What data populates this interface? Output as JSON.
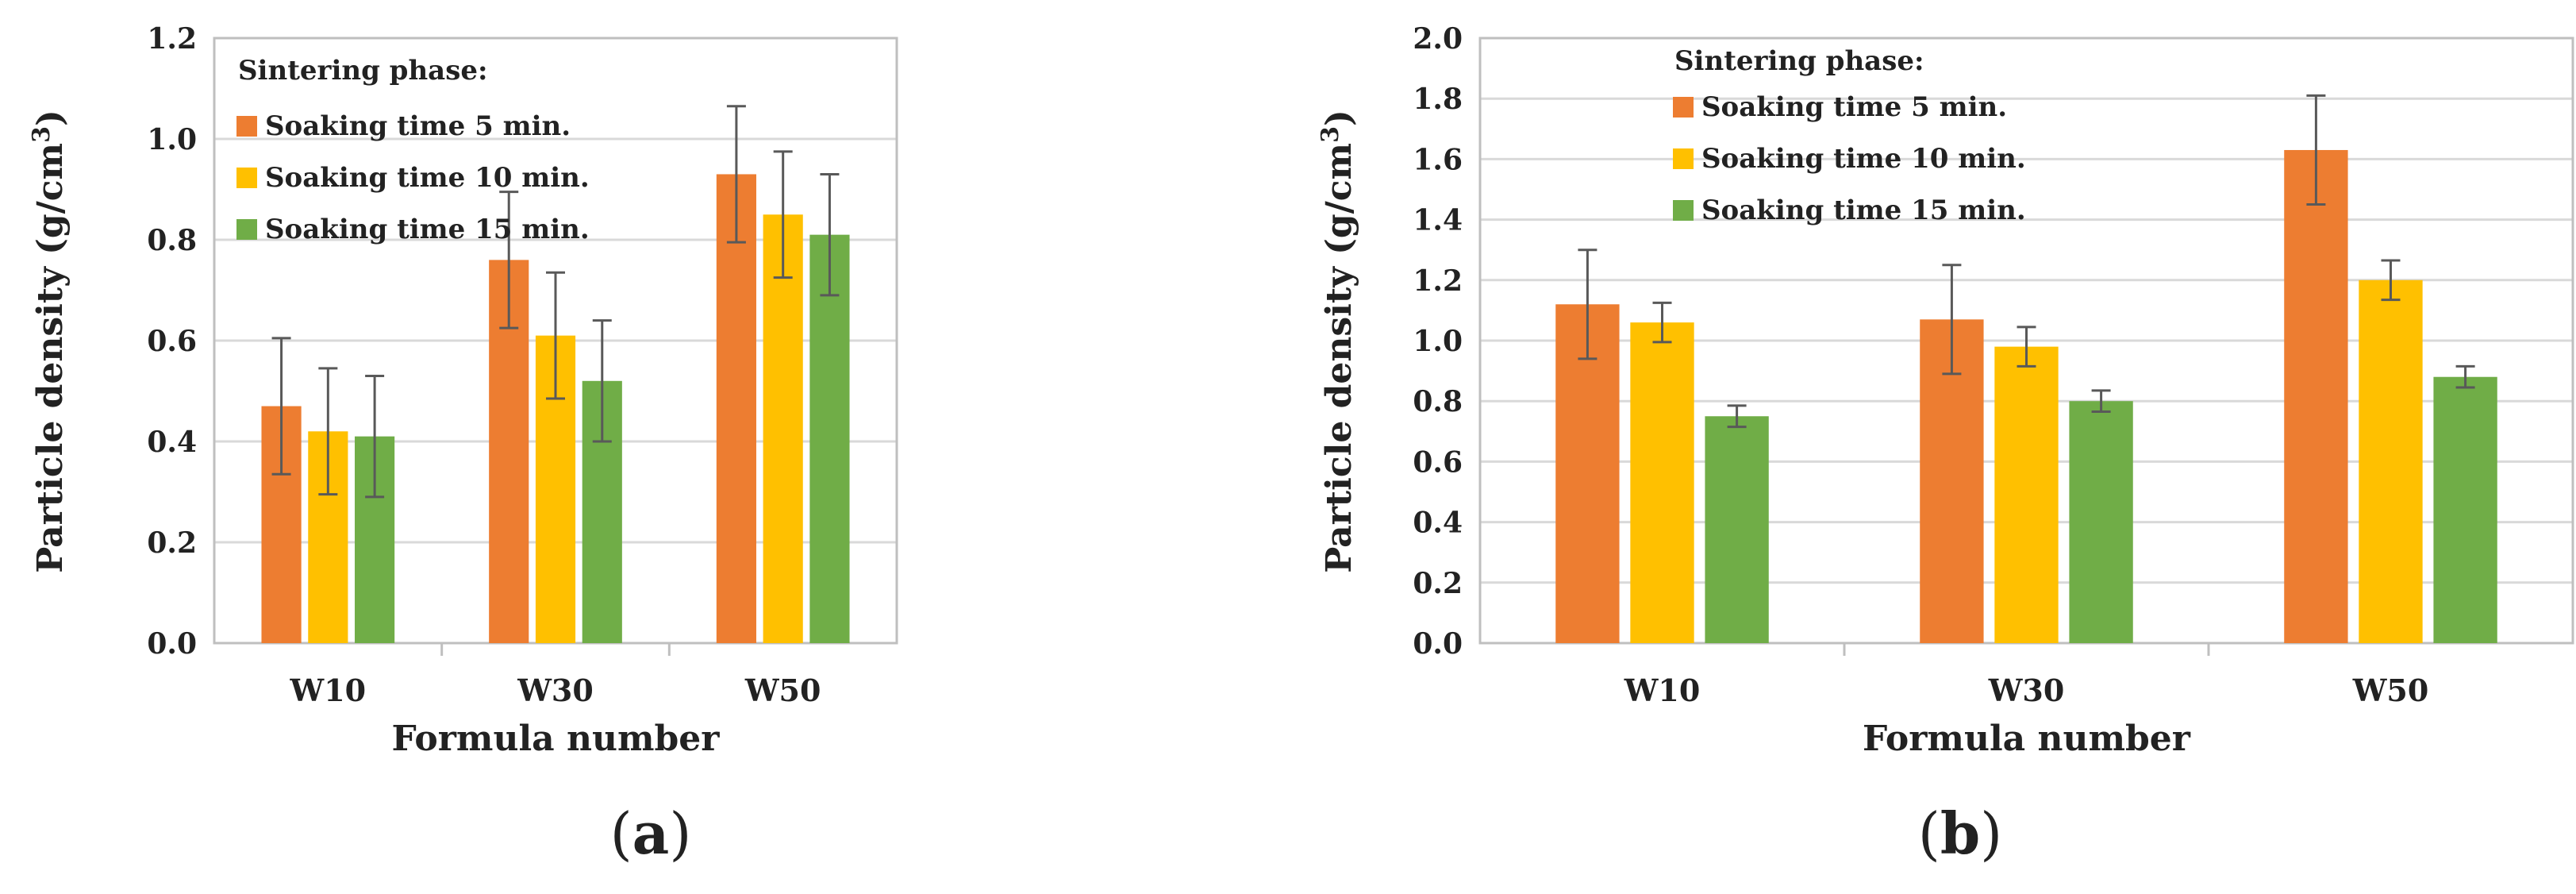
{
  "chart_data": [
    {
      "id": "a",
      "type": "bar",
      "panel_label": "a",
      "categories": [
        "W10",
        "W30",
        "W50"
      ],
      "series": [
        {
          "name": "Soaking time 5 min.",
          "color": "#ED7D31",
          "values": [
            0.47,
            0.76,
            0.93
          ],
          "errors": [
            0.135,
            0.135,
            0.135
          ]
        },
        {
          "name": "Soaking time 10 min.",
          "color": "#FFC000",
          "values": [
            0.42,
            0.61,
            0.85
          ],
          "errors": [
            0.125,
            0.125,
            0.125
          ]
        },
        {
          "name": "Soaking time 15 min.",
          "color": "#70AD47",
          "values": [
            0.41,
            0.52,
            0.81
          ],
          "errors": [
            0.12,
            0.12,
            0.12
          ]
        }
      ],
      "legend_title": "Sintering phase:",
      "legend_position": "top-left",
      "xlabel": "Formula number",
      "ylabel_main": "Particle density (g/cm",
      "ylabel_sup": "3",
      "ylabel_close": ")",
      "ylim": [
        0,
        1.2
      ],
      "yticks": [
        "0.0",
        "0.2",
        "0.4",
        "0.6",
        "0.8",
        "1.0",
        "1.2"
      ],
      "grid": true
    },
    {
      "id": "b",
      "type": "bar",
      "panel_label": "b",
      "categories": [
        "W10",
        "W30",
        "W50"
      ],
      "series": [
        {
          "name": "Soaking time 5 min.",
          "color": "#ED7D31",
          "values": [
            1.12,
            1.07,
            1.63
          ],
          "errors": [
            0.18,
            0.18,
            0.18
          ]
        },
        {
          "name": "Soaking time 10 min.",
          "color": "#FFC000",
          "values": [
            1.06,
            0.98,
            1.2
          ],
          "errors": [
            0.065,
            0.065,
            0.065
          ]
        },
        {
          "name": "Soaking time 15 min.",
          "color": "#70AD47",
          "values": [
            0.75,
            0.8,
            0.88
          ],
          "errors": [
            0.035,
            0.035,
            0.035
          ]
        }
      ],
      "legend_title": "Sintering phase:",
      "legend_position": "top-left",
      "xlabel": "Formula number",
      "ylabel_main": "Particle density (g/cm",
      "ylabel_sup": "3",
      "ylabel_close": ")",
      "ylim": [
        0,
        2.0
      ],
      "yticks": [
        "0.0",
        "0.2",
        "0.4",
        "0.6",
        "0.8",
        "1.0",
        "1.2",
        "1.4",
        "1.6",
        "1.8",
        "2.0"
      ],
      "grid": true
    }
  ]
}
